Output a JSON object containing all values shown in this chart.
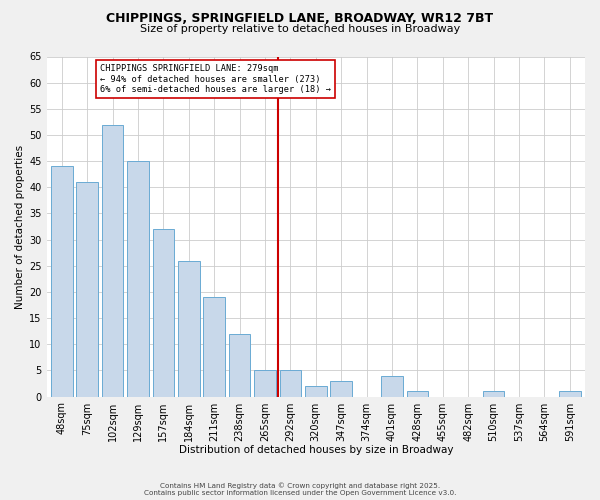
{
  "title": "CHIPPINGS, SPRINGFIELD LANE, BROADWAY, WR12 7BT",
  "subtitle": "Size of property relative to detached houses in Broadway",
  "xlabel": "Distribution of detached houses by size in Broadway",
  "ylabel": "Number of detached properties",
  "bar_labels": [
    "48sqm",
    "75sqm",
    "102sqm",
    "129sqm",
    "157sqm",
    "184sqm",
    "211sqm",
    "238sqm",
    "265sqm",
    "292sqm",
    "320sqm",
    "347sqm",
    "374sqm",
    "401sqm",
    "428sqm",
    "455sqm",
    "482sqm",
    "510sqm",
    "537sqm",
    "564sqm",
    "591sqm"
  ],
  "bar_values": [
    44,
    41,
    52,
    45,
    32,
    26,
    19,
    12,
    5,
    5,
    2,
    3,
    0,
    4,
    1,
    0,
    0,
    1,
    0,
    0,
    1
  ],
  "bar_color": "#c8d8ea",
  "bar_edge_color": "#6aaad4",
  "ylim": [
    0,
    65
  ],
  "yticks": [
    0,
    5,
    10,
    15,
    20,
    25,
    30,
    35,
    40,
    45,
    50,
    55,
    60,
    65
  ],
  "vline_x": 8.5,
  "vline_color": "#cc0000",
  "annotation_title": "CHIPPINGS SPRINGFIELD LANE: 279sqm",
  "annotation_line1": "← 94% of detached houses are smaller (273)",
  "annotation_line2": "6% of semi-detached houses are larger (18) →",
  "annotation_box_color": "#ffffff",
  "annotation_box_edge": "#cc0000",
  "footer1": "Contains HM Land Registry data © Crown copyright and database right 2025.",
  "footer2": "Contains public sector information licensed under the Open Government Licence v3.0.",
  "bg_color": "#f0f0f0",
  "plot_bg_color": "#ffffff",
  "grid_color": "#cccccc",
  "title_fontsize": 9,
  "subtitle_fontsize": 8,
  "axis_label_fontsize": 7.5,
  "tick_fontsize": 7,
  "annotation_fontsize": 6.2,
  "footer_fontsize": 5.2
}
